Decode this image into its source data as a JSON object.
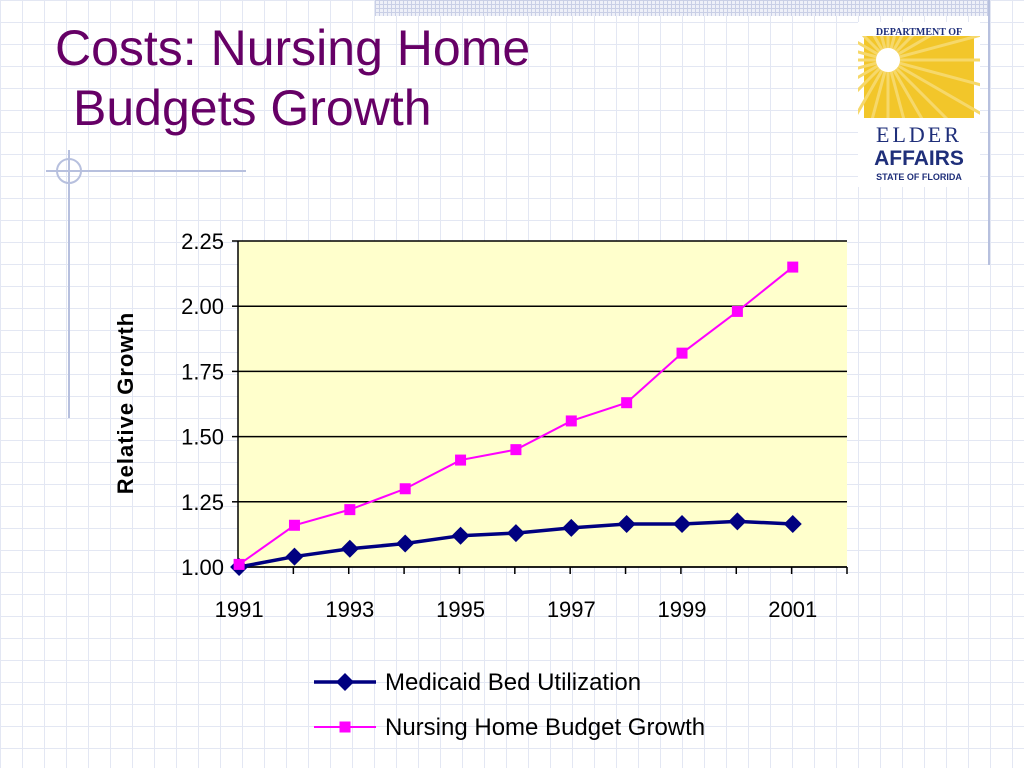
{
  "slide": {
    "title_line1": "Costs: Nursing Home",
    "title_line2": "Budgets Growth"
  },
  "logo": {
    "top_text": "DEPARTMENT OF",
    "main_text_1": "ELDER",
    "main_text_2": "AFFAIRS",
    "bottom_text": "STATE OF FLORIDA",
    "colors": {
      "sun": "#f2c62a",
      "text": "#1f2f7a",
      "ring": "#f6d86a"
    }
  },
  "chart_data": {
    "type": "line",
    "ylabel": "Relative Growth",
    "ylim": [
      1.0,
      2.25
    ],
    "yticks": [
      "1.00",
      "1.25",
      "1.50",
      "1.75",
      "2.00",
      "2.25"
    ],
    "xtick_labels": [
      "1991",
      "1993",
      "1995",
      "1997",
      "1999",
      "2001"
    ],
    "x": [
      1991,
      1992,
      1993,
      1994,
      1995,
      1996,
      1997,
      1998,
      1999,
      2000,
      2001
    ],
    "grid": true,
    "plot_background": "#ffffcc",
    "legend_position": "bottom",
    "series": [
      {
        "name": "Medicaid Bed Utilization",
        "color": "#000080",
        "marker": "diamond",
        "values": [
          1.0,
          1.04,
          1.07,
          1.09,
          1.12,
          1.13,
          1.15,
          1.165,
          1.165,
          1.175,
          1.165
        ]
      },
      {
        "name": "Nursing Home Budget Growth",
        "color": "#ff00ff",
        "marker": "square",
        "values": [
          1.01,
          1.16,
          1.22,
          1.3,
          1.41,
          1.45,
          1.56,
          1.63,
          1.82,
          1.98,
          2.15
        ]
      }
    ]
  }
}
